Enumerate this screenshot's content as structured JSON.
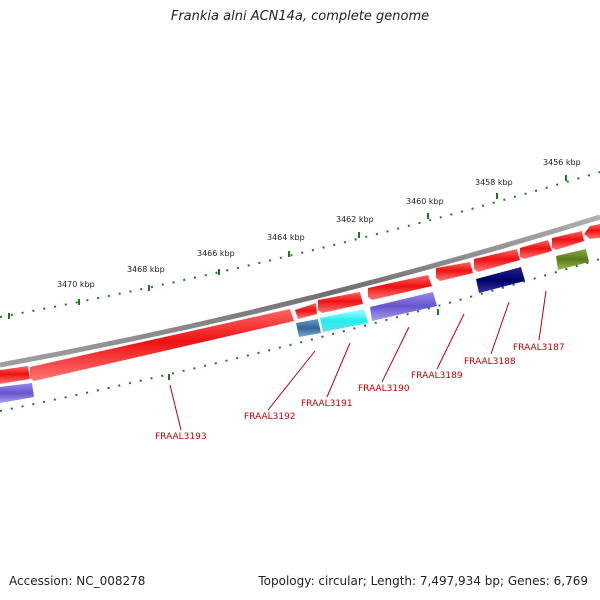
{
  "title": "Frankia alni ACN14a, complete genome",
  "footer": {
    "accession": "Accession: NC_008278",
    "summary": "Topology: circular; Length: 7,497,934 bp; Genes: 6,769"
  },
  "scale_labels": [
    "3456 kbp",
    "3458 kbp",
    "3460 kbp",
    "3462 kbp",
    "3464 kbp",
    "3466 kbp",
    "3468 kbp",
    "3470 kbp"
  ],
  "gene_labels": [
    "FRAAL3187",
    "FRAAL3188",
    "FRAAL3189",
    "FRAAL3190",
    "FRAAL3191",
    "FRAAL3192",
    "FRAAL3193"
  ],
  "colors": {
    "backbone": "#808080",
    "forward_gene": "#ee1111",
    "tick": "#1a7a1a",
    "label": "#c00000",
    "cyan_feature": "#22eeee",
    "purple_feature": "#7766dd",
    "navy_feature": "#000077",
    "olive_feature": "#6b8c22",
    "steel_feature": "#4477aa"
  }
}
